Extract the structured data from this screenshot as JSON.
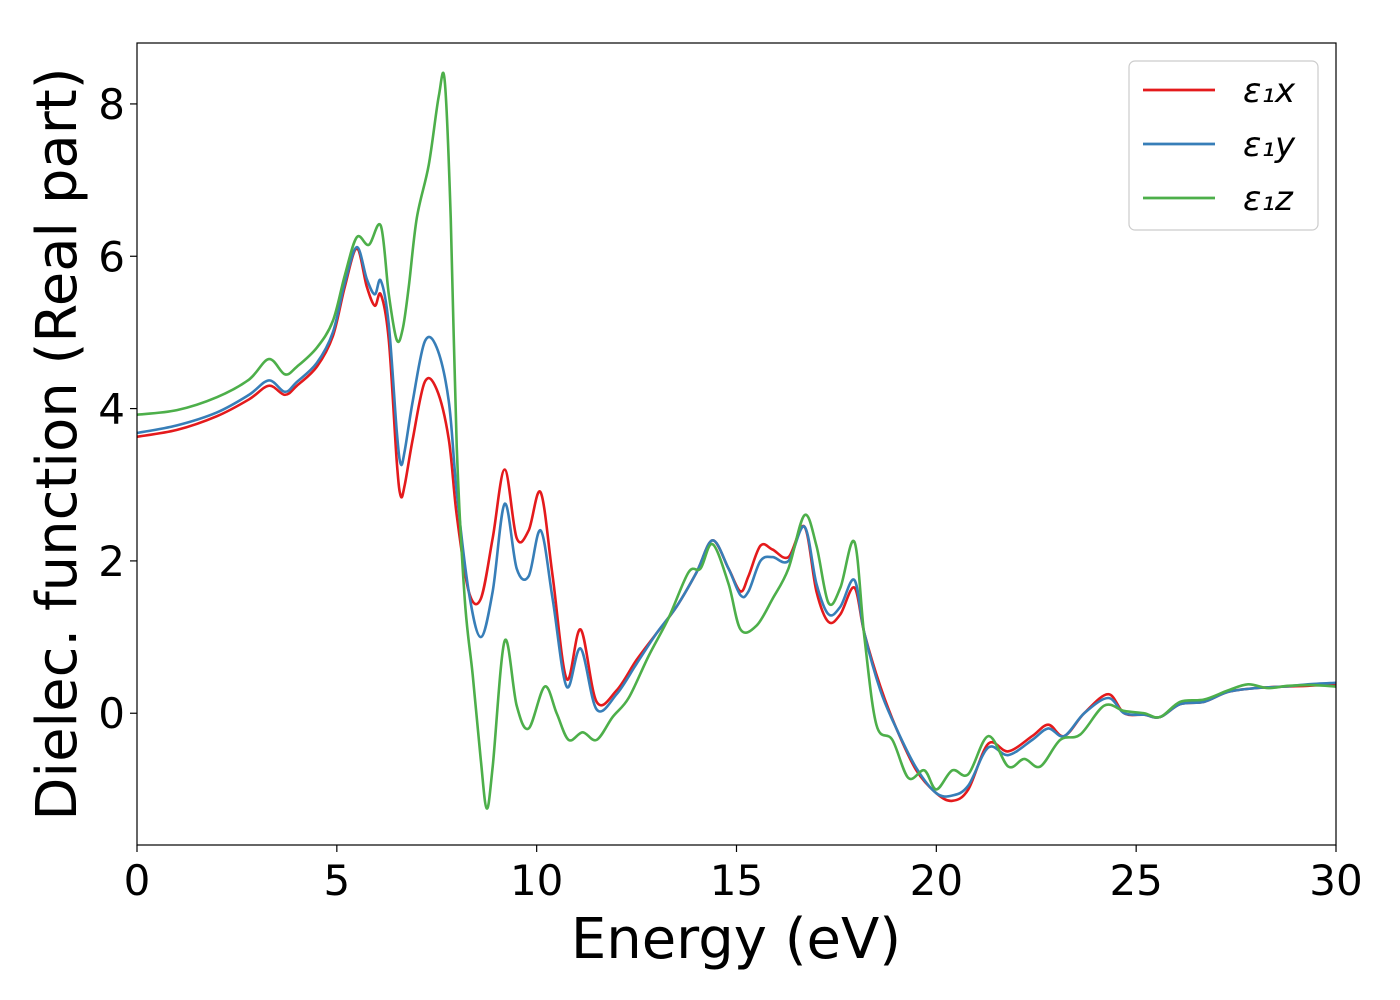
{
  "chart_data": {
    "type": "line",
    "title": "",
    "xlabel": "Energy (eV)",
    "ylabel": "Dielec. function (Real part)",
    "xlim": [
      0,
      30
    ],
    "ylim": [
      -1.73,
      8.8
    ],
    "xticks": [
      0,
      5,
      10,
      15,
      20,
      25,
      30
    ],
    "yticks": [
      0,
      2,
      4,
      6,
      8
    ],
    "grid": false,
    "legend_position": "top-right",
    "series": [
      {
        "name": "ε₁x",
        "color": "#e41a1c",
        "x": [
          0,
          1,
          2,
          2.8,
          3.3,
          3.7,
          4.0,
          4.5,
          4.9,
          5.2,
          5.5,
          5.75,
          5.95,
          6.1,
          6.3,
          6.5,
          6.6,
          6.7,
          6.9,
          7.2,
          7.5,
          7.8,
          8.0,
          8.3,
          8.6,
          8.9,
          9.2,
          9.5,
          9.8,
          10.1,
          10.4,
          10.75,
          11.1,
          11.5,
          12.0,
          12.5,
          13.0,
          13.5,
          14.0,
          14.4,
          14.8,
          15.1,
          15.3,
          15.6,
          15.9,
          16.3,
          16.7,
          17.0,
          17.3,
          17.6,
          17.95,
          18.2,
          18.6,
          19.0,
          19.5,
          20.0,
          20.4,
          20.8,
          21.3,
          21.8,
          22.4,
          22.8,
          23.2,
          23.7,
          24.3,
          24.7,
          25.2,
          25.6,
          26.1,
          26.7,
          27.3,
          28.0,
          28.7,
          29.3,
          30.0
        ],
        "y": [
          3.63,
          3.72,
          3.9,
          4.12,
          4.3,
          4.18,
          4.3,
          4.55,
          4.95,
          5.6,
          6.1,
          5.6,
          5.35,
          5.5,
          4.9,
          3.3,
          2.85,
          3.0,
          3.6,
          4.35,
          4.25,
          3.6,
          2.6,
          1.6,
          1.5,
          2.3,
          3.2,
          2.3,
          2.4,
          2.9,
          1.8,
          0.45,
          1.1,
          0.15,
          0.3,
          0.7,
          1.05,
          1.4,
          1.85,
          2.27,
          1.9,
          1.6,
          1.8,
          2.2,
          2.15,
          2.05,
          2.45,
          1.6,
          1.2,
          1.3,
          1.65,
          1.05,
          0.35,
          -0.2,
          -0.75,
          -1.05,
          -1.15,
          -1.0,
          -0.4,
          -0.5,
          -0.3,
          -0.15,
          -0.3,
          0.0,
          0.25,
          0.0,
          -0.02,
          -0.05,
          0.12,
          0.15,
          0.28,
          0.33,
          0.35,
          0.36,
          0.38
        ]
      },
      {
        "name": "ε₁y",
        "color": "#377eb8",
        "x": [
          0,
          1,
          2,
          2.8,
          3.3,
          3.7,
          4.0,
          4.5,
          4.9,
          5.2,
          5.5,
          5.75,
          5.95,
          6.1,
          6.3,
          6.5,
          6.6,
          6.7,
          6.9,
          7.2,
          7.5,
          7.8,
          8.0,
          8.3,
          8.6,
          8.9,
          9.2,
          9.5,
          9.8,
          10.1,
          10.4,
          10.75,
          11.1,
          11.5,
          12.0,
          12.5,
          13.0,
          13.5,
          14.0,
          14.4,
          14.8,
          15.1,
          15.3,
          15.6,
          15.9,
          16.3,
          16.7,
          17.0,
          17.3,
          17.6,
          17.95,
          18.2,
          18.6,
          19.0,
          19.5,
          20.0,
          20.4,
          20.8,
          21.3,
          21.8,
          22.4,
          22.8,
          23.2,
          23.7,
          24.3,
          24.7,
          25.2,
          25.6,
          26.1,
          26.7,
          27.3,
          28.0,
          28.7,
          29.3,
          30.0
        ],
        "y": [
          3.68,
          3.78,
          3.95,
          4.18,
          4.37,
          4.22,
          4.35,
          4.6,
          5.0,
          5.65,
          6.12,
          5.7,
          5.5,
          5.68,
          5.1,
          3.7,
          3.27,
          3.45,
          4.1,
          4.88,
          4.8,
          4.1,
          2.9,
          1.6,
          1.0,
          1.6,
          2.75,
          1.9,
          1.8,
          2.4,
          1.5,
          0.35,
          0.85,
          0.05,
          0.25,
          0.65,
          1.05,
          1.4,
          1.85,
          2.27,
          1.9,
          1.55,
          1.6,
          2.0,
          2.05,
          2.0,
          2.45,
          1.7,
          1.3,
          1.4,
          1.75,
          1.05,
          0.3,
          -0.2,
          -0.72,
          -1.05,
          -1.08,
          -0.95,
          -0.45,
          -0.55,
          -0.35,
          -0.2,
          -0.3,
          0.0,
          0.2,
          0.0,
          -0.02,
          -0.05,
          0.12,
          0.15,
          0.28,
          0.33,
          0.35,
          0.38,
          0.4
        ]
      },
      {
        "name": "ε₁z",
        "color": "#4daf4a",
        "x": [
          0,
          1,
          2,
          2.8,
          3.3,
          3.7,
          4.0,
          4.5,
          4.9,
          5.2,
          5.5,
          5.8,
          6.1,
          6.3,
          6.5,
          6.65,
          6.8,
          7.0,
          7.3,
          7.55,
          7.7,
          7.85,
          8.0,
          8.2,
          8.4,
          8.6,
          8.75,
          8.9,
          9.2,
          9.5,
          9.8,
          10.2,
          10.5,
          10.8,
          11.15,
          11.5,
          11.9,
          12.3,
          12.8,
          13.3,
          13.8,
          14.1,
          14.4,
          14.8,
          15.1,
          15.5,
          15.9,
          16.3,
          16.7,
          17.0,
          17.3,
          17.6,
          17.95,
          18.2,
          18.5,
          18.9,
          19.3,
          19.7,
          20.0,
          20.4,
          20.8,
          21.3,
          21.8,
          22.2,
          22.6,
          23.1,
          23.6,
          24.2,
          24.7,
          25.2,
          25.6,
          26.1,
          26.7,
          27.3,
          27.8,
          28.3,
          28.8,
          29.4,
          30.0
        ],
        "y": [
          3.92,
          3.98,
          4.15,
          4.38,
          4.65,
          4.45,
          4.55,
          4.8,
          5.15,
          5.75,
          6.25,
          6.15,
          6.4,
          5.5,
          4.9,
          5.05,
          5.6,
          6.5,
          7.2,
          8.1,
          8.3,
          6.5,
          3.5,
          1.5,
          0.5,
          -0.6,
          -1.25,
          -0.7,
          0.95,
          0.1,
          -0.2,
          0.35,
          0.0,
          -0.35,
          -0.25,
          -0.35,
          -0.05,
          0.2,
          0.75,
          1.25,
          1.85,
          1.9,
          2.22,
          1.7,
          1.1,
          1.15,
          1.5,
          1.9,
          2.6,
          2.2,
          1.45,
          1.65,
          2.25,
          1.0,
          -0.15,
          -0.35,
          -0.85,
          -0.75,
          -1.0,
          -0.75,
          -0.8,
          -0.3,
          -0.7,
          -0.6,
          -0.7,
          -0.35,
          -0.28,
          0.1,
          0.03,
          0.0,
          -0.05,
          0.15,
          0.18,
          0.3,
          0.38,
          0.33,
          0.36,
          0.37,
          0.35
        ]
      }
    ]
  }
}
